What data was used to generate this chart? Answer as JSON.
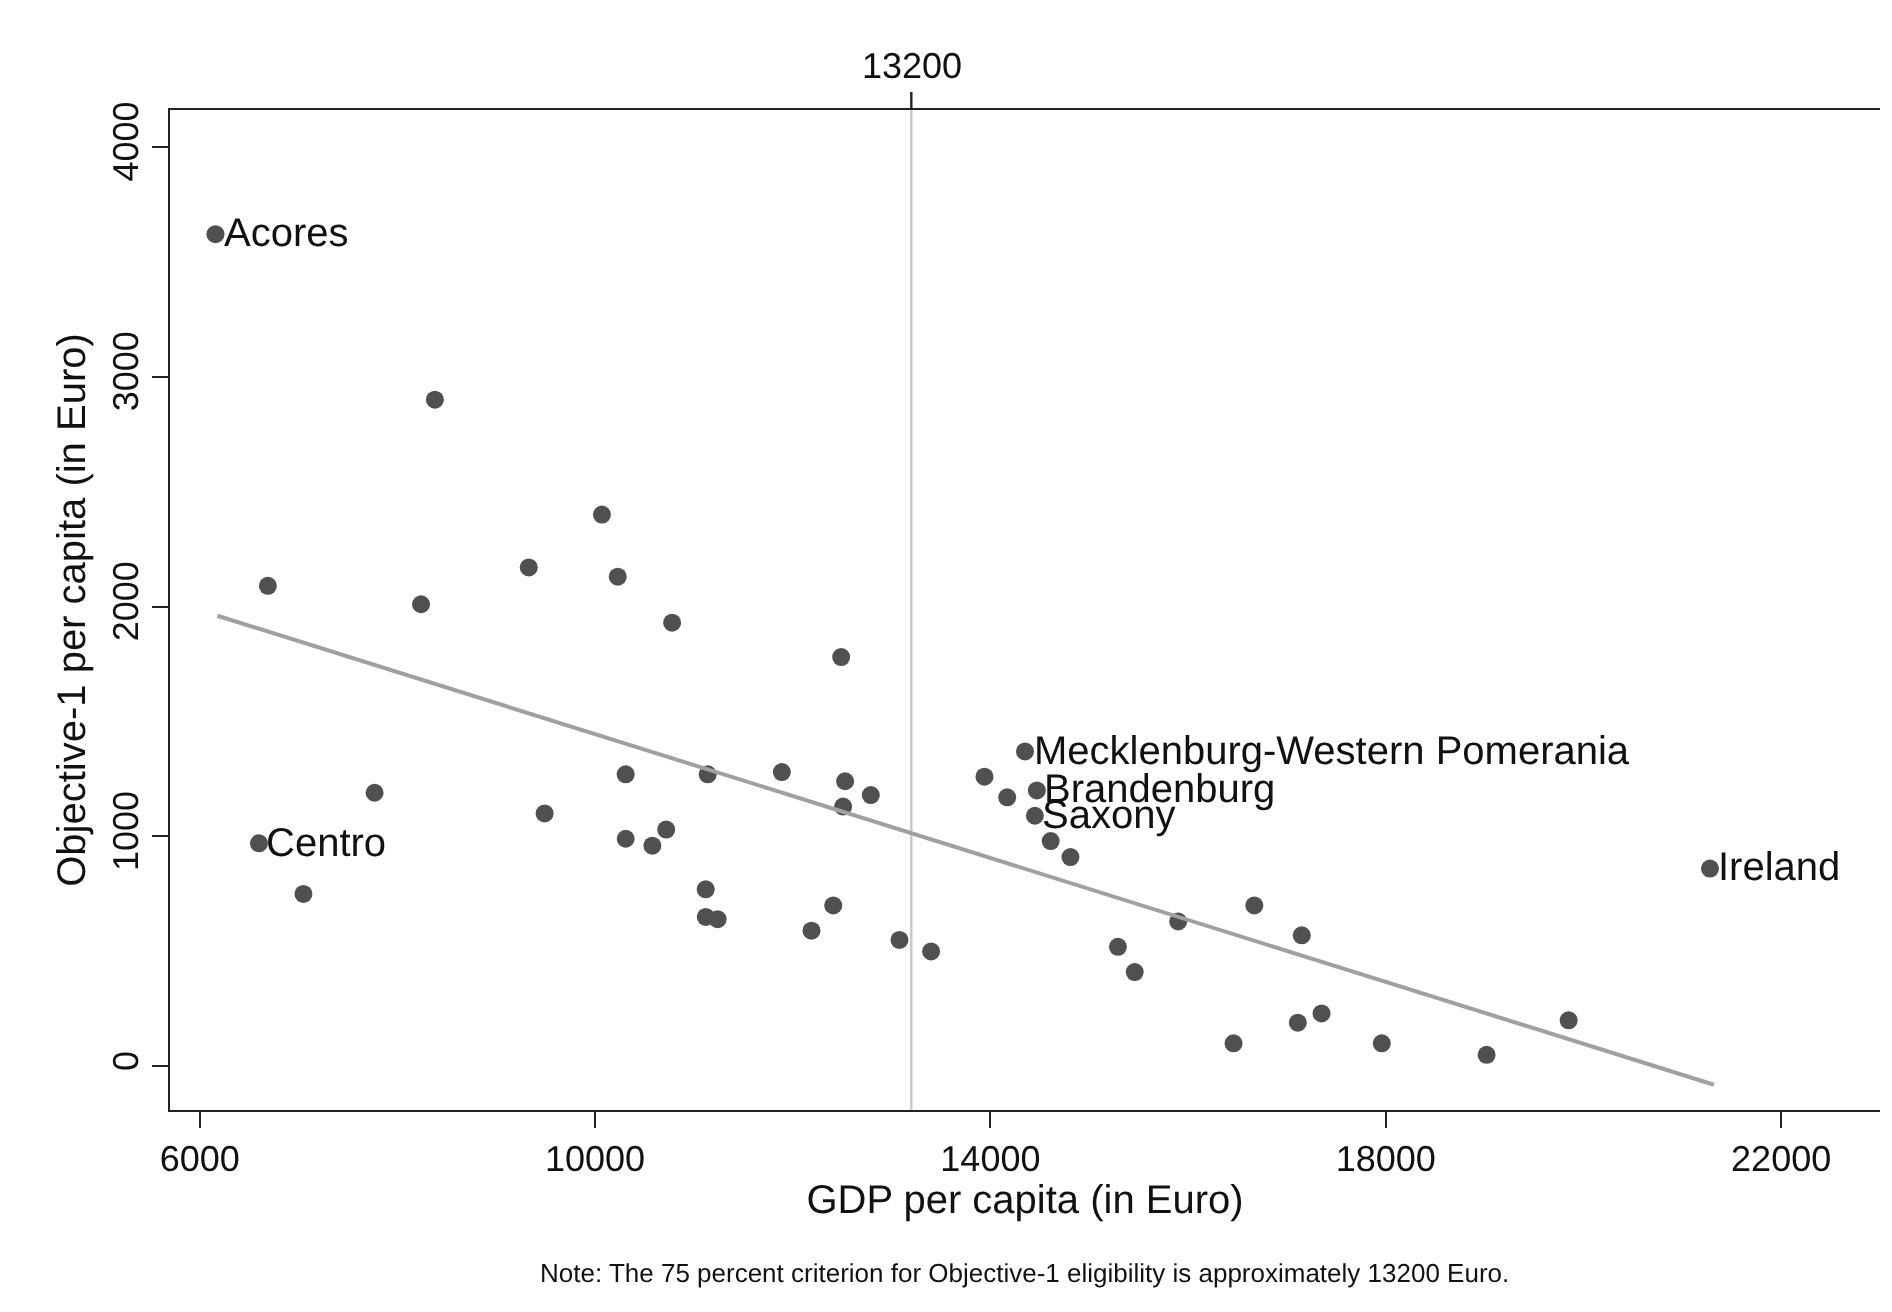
{
  "chart_data": {
    "type": "scatter",
    "xlabel": "GDP per capita (in Euro)",
    "ylabel": "Objective-1 per capita (in Euro)",
    "xlim": [
      5700,
      23000
    ],
    "xticks": [
      6000,
      10000,
      14000,
      18000,
      22000
    ],
    "ylim": [
      -190,
      4160
    ],
    "yticks": [
      0,
      1000,
      2000,
      3000,
      4000
    ],
    "grid": false,
    "ref_lines": [
      {
        "axis": "x",
        "value": 13200,
        "label": "13200",
        "color": "#c8c8c8"
      }
    ],
    "annotations": [
      {
        "text": "Acores",
        "x": 6160,
        "y": 3620
      },
      {
        "text": "Centro",
        "x": 6600,
        "y": 970
      },
      {
        "text": "Mecklenburg-Western Pomerania",
        "x": 14350,
        "y": 1370
      },
      {
        "text": "Brandenburg",
        "x": 14470,
        "y": 1200
      },
      {
        "text": "Saxony",
        "x": 14450,
        "y": 1090
      },
      {
        "text": "Ireland",
        "x": 21280,
        "y": 860
      },
      "Note: The 75 percent criterion for Objective-1 eligibility is approximately 13200 Euro."
    ],
    "series": [
      {
        "color": "#505050",
        "marker": "circle",
        "x": [
          6160,
          8380,
          6690,
          8240,
          9330,
          10070,
          10230,
          10780,
          12490,
          7770,
          9490,
          10310,
          11140,
          11890,
          6600,
          7050,
          10310,
          10580,
          10720,
          11120,
          11120,
          11240,
          12190,
          12530,
          12510,
          12790,
          12410,
          13080,
          13400,
          13940,
          14170,
          14350,
          14470,
          14450,
          14610,
          14810,
          15900,
          16670,
          17150,
          15290,
          15460,
          16460,
          17110,
          17350,
          17960,
          19020,
          19850,
          21280
        ],
        "values": [
          3620,
          2900,
          2090,
          2010,
          2170,
          2400,
          2130,
          1930,
          1780,
          1190,
          1100,
          1270,
          1270,
          1280,
          970,
          750,
          990,
          960,
          1030,
          770,
          650,
          640,
          590,
          1240,
          1130,
          1180,
          700,
          550,
          500,
          1260,
          1170,
          1370,
          1200,
          1090,
          980,
          910,
          630,
          700,
          570,
          520,
          410,
          100,
          190,
          230,
          100,
          50,
          200,
          860
        ]
      },
      {
        "type": "line",
        "color": "#a0a0a0",
        "marker": "none",
        "line_style": "solid",
        "x": [
          6180,
          21320
        ],
        "values": [
          1960,
          -80
        ]
      }
    ]
  }
}
